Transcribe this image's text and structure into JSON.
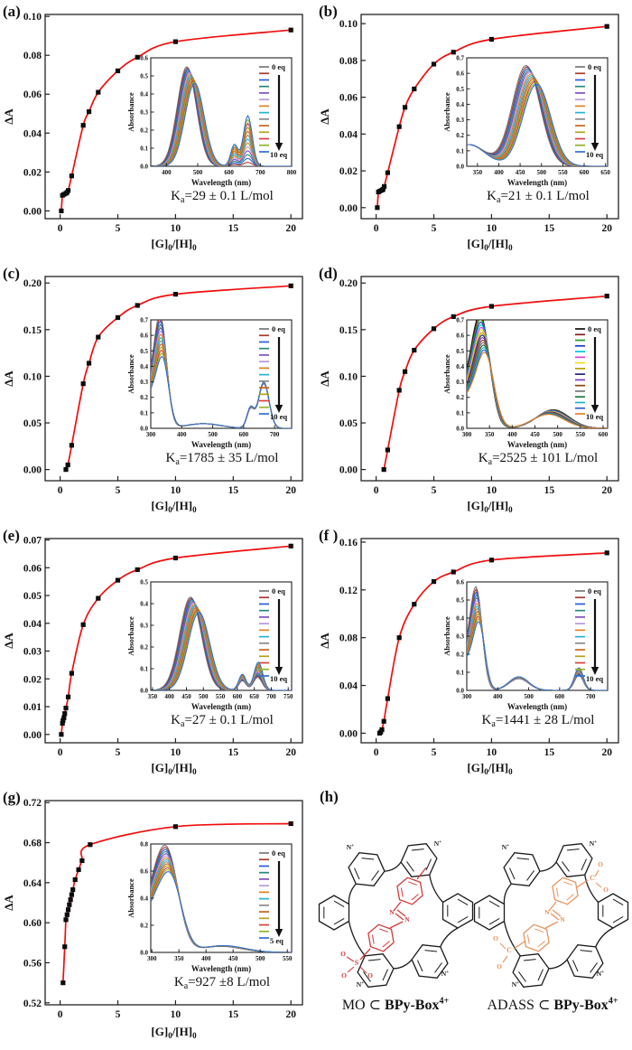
{
  "figure": {
    "background": "#ffffff",
    "frame_color": "#222222",
    "fit_color": "#f20d0d",
    "marker_color": "#0c0c0c"
  },
  "panel_h": {
    "letter": "(h)",
    "cage_color": "#1a1a1a",
    "left": {
      "pre": "MO ⊂ ",
      "bold": "BPy-Box",
      "sup": "4+",
      "guest_color": "#d43a3a"
    },
    "right": {
      "pre": "ADASS ⊂ ",
      "bold": "BPy-Box",
      "sup": "4+",
      "guest_color": "#e8935f"
    }
  },
  "chart_data": [
    {
      "id": "a",
      "letter": "(a)",
      "type": "scatter",
      "xlabel": {
        "p1": "[G]",
        "s1": "0",
        "p2": "/[H]",
        "s2": "0"
      },
      "ylabel": "ΔA",
      "xlim": [
        -1.3,
        21
      ],
      "ylim": [
        -0.004,
        0.101
      ],
      "xticks": [
        0,
        5,
        10,
        15,
        20
      ],
      "yticks": [
        0.0,
        0.02,
        0.04,
        0.06,
        0.08,
        0.1
      ],
      "ka": {
        "base": "K",
        "sub": "a",
        "rest": "=29 ± 0.1 L/mol"
      },
      "points": [
        [
          0.1,
          0.0
        ],
        [
          0.2,
          0.008
        ],
        [
          0.33,
          0.0085
        ],
        [
          0.5,
          0.009
        ],
        [
          0.6,
          0.0095
        ],
        [
          0.7,
          0.0105
        ],
        [
          1,
          0.018
        ],
        [
          2,
          0.044
        ],
        [
          2.5,
          0.051
        ],
        [
          3.3,
          0.061
        ],
        [
          5,
          0.072
        ],
        [
          6.7,
          0.079
        ],
        [
          10,
          0.087
        ],
        [
          20,
          0.093
        ]
      ],
      "inset": {
        "xlabel": "Wavelength (nm)",
        "ylabel": "Absorbance",
        "xlim": [
          350,
          800
        ],
        "ylim": [
          0,
          0.6
        ],
        "xticks": [
          400,
          500,
          600,
          700,
          800
        ],
        "yticks": [
          0.0,
          0.1,
          0.2,
          0.3,
          0.4,
          0.5,
          0.6
        ],
        "legend_top": "0 eq",
        "legend_bottom": "10 eq",
        "n_curves": 14,
        "peaks": [
          {
            "c": [
              465,
              490
            ],
            "w": 43,
            "a": [
              0.55,
              0.46
            ]
          },
          {
            "c": [
              660,
              660
            ],
            "w": 20,
            "a": [
              0.0,
              0.28
            ]
          },
          {
            "c": [
              617,
              617
            ],
            "w": 16,
            "a": [
              0.0,
              0.12
            ]
          }
        ]
      }
    },
    {
      "id": "b",
      "letter": "(b)",
      "type": "scatter",
      "xlabel": {
        "p1": "[G]",
        "s1": "0",
        "p2": "/[H]",
        "s2": "0"
      },
      "ylabel": "ΔA",
      "xlim": [
        -1.3,
        21
      ],
      "ylim": [
        -0.006,
        0.105
      ],
      "xticks": [
        0,
        5,
        10,
        15,
        20
      ],
      "yticks": [
        0.0,
        0.02,
        0.04,
        0.06,
        0.08,
        0.1
      ],
      "ka": {
        "base": "K",
        "sub": "a",
        "rest": "=21 ± 0.1 L/mol"
      },
      "points": [
        [
          0.1,
          0.0
        ],
        [
          0.2,
          0.0085
        ],
        [
          0.33,
          0.009
        ],
        [
          0.5,
          0.0095
        ],
        [
          0.6,
          0.01
        ],
        [
          0.7,
          0.0115
        ],
        [
          1,
          0.019
        ],
        [
          2,
          0.044
        ],
        [
          2.5,
          0.0545
        ],
        [
          3.3,
          0.0645
        ],
        [
          5,
          0.078
        ],
        [
          6.7,
          0.0845
        ],
        [
          10,
          0.0915
        ],
        [
          20,
          0.0985
        ]
      ],
      "inset": {
        "xlabel": "Wavelength (nm)",
        "ylabel": "Absorbance",
        "xlim": [
          325,
          655
        ],
        "ylim": [
          0,
          0.7
        ],
        "xticks": [
          350,
          400,
          450,
          500,
          550,
          600,
          650
        ],
        "yticks": [
          0.0,
          0.1,
          0.2,
          0.3,
          0.4,
          0.5,
          0.6,
          0.7
        ],
        "legend_top": "0 eq",
        "legend_bottom": "10 eq",
        "n_curves": 14,
        "peaks": [
          {
            "c": [
              464,
              489
            ],
            "w": 46,
            "a": [
              0.65,
              0.53
            ]
          },
          {
            "c": [
              330,
              330
            ],
            "w": 55,
            "a": [
              0.14,
              0.14
            ]
          }
        ]
      }
    },
    {
      "id": "c",
      "letter": "(c)",
      "type": "scatter",
      "xlabel": {
        "p1": "[G]",
        "s1": "0",
        "p2": "/[H]",
        "s2": "0"
      },
      "ylabel": "ΔA",
      "xlim": [
        -1.3,
        21
      ],
      "ylim": [
        -0.012,
        0.207
      ],
      "xticks": [
        0,
        5,
        10,
        15,
        20
      ],
      "yticks": [
        0.0,
        0.05,
        0.1,
        0.15,
        0.2
      ],
      "ka": {
        "base": "K",
        "sub": "a",
        "rest": "=1785 ± 35 L/mol"
      },
      "points": [
        [
          0.5,
          0.0
        ],
        [
          0.67,
          0.005
        ],
        [
          1,
          0.026
        ],
        [
          2,
          0.092
        ],
        [
          2.5,
          0.114
        ],
        [
          3.3,
          0.142
        ],
        [
          5,
          0.163
        ],
        [
          6.7,
          0.176
        ],
        [
          10,
          0.188
        ],
        [
          20,
          0.197
        ]
      ],
      "inset": {
        "xlabel": "Wavelength (nm)",
        "ylabel": "Absorbance",
        "xlim": [
          300,
          755
        ],
        "ylim": [
          0,
          0.7
        ],
        "xticks": [
          300,
          400,
          500,
          600,
          700
        ],
        "yticks": [
          0.0,
          0.1,
          0.2,
          0.3,
          0.4,
          0.5,
          0.6,
          0.7
        ],
        "legend_top": "0 eq",
        "legend_bottom": "10 eq",
        "n_curves": 14,
        "peaks": [
          {
            "c": [
              333,
              339
            ],
            "w": 27,
            "a": [
              0.65,
              0.42
            ]
          },
          {
            "c": [
              665,
              665
            ],
            "w": 24,
            "a": [
              0.29,
              0.3
            ]
          },
          {
            "c": [
              622,
              622
            ],
            "w": 16,
            "a": [
              0.12,
              0.13
            ]
          },
          {
            "c": [
              470,
              470
            ],
            "w": 80,
            "a": [
              0.03,
              0.03
            ]
          },
          {
            "c": [
              300,
              300
            ],
            "w": 30,
            "a": [
              0.25,
              0.2
            ]
          }
        ]
      }
    },
    {
      "id": "d",
      "letter": "(d)",
      "type": "scatter",
      "xlabel": {
        "p1": "[G]",
        "s1": "0",
        "p2": "/[H]",
        "s2": "0"
      },
      "ylabel": "ΔA",
      "xlim": [
        -1.3,
        21
      ],
      "ylim": [
        -0.012,
        0.207
      ],
      "xticks": [
        0,
        5,
        10,
        15,
        20
      ],
      "yticks": [
        0.0,
        0.05,
        0.1,
        0.15,
        0.2
      ],
      "ka": {
        "base": "K",
        "sub": "a",
        "rest": "=2525 ± 101 L/mol"
      },
      "points": [
        [
          0.67,
          0.0
        ],
        [
          1,
          0.021
        ],
        [
          2,
          0.085
        ],
        [
          2.5,
          0.105
        ],
        [
          3.3,
          0.128
        ],
        [
          5,
          0.151
        ],
        [
          6.7,
          0.164
        ],
        [
          10,
          0.175
        ],
        [
          20,
          0.186
        ]
      ],
      "inset": {
        "xlabel": "Wavelength (nm)",
        "ylabel": "Absorbance",
        "xlim": [
          300,
          610
        ],
        "ylim": [
          0,
          0.7
        ],
        "xticks": [
          300,
          350,
          400,
          450,
          500,
          550,
          600
        ],
        "yticks": [
          0.0,
          0.1,
          0.2,
          0.3,
          0.4,
          0.5,
          0.6,
          0.7
        ],
        "legend_top": "0 eq",
        "legend_bottom": "10 eq",
        "n_curves": 16,
        "palette": [
          "#111111",
          "#8b1a1a",
          "#22a022",
          "#2233cc",
          "#00c8d7",
          "#e040e0",
          "#e8e020",
          "#b8a000",
          "#232380",
          "#7d3fbf",
          "#8b4513",
          "#777777",
          "#1a7a3a",
          "#18b6c9",
          "#2a5bd7",
          "#e8821e"
        ],
        "peaks": [
          {
            "c": [
              332,
              341
            ],
            "w": 27,
            "a": [
              0.66,
              0.46
            ]
          },
          {
            "c": [
              490,
              480
            ],
            "w": 50,
            "a": [
              0.12,
              0.09
            ]
          },
          {
            "c": [
              300,
              300
            ],
            "w": 30,
            "a": [
              0.22,
              0.18
            ]
          }
        ]
      }
    },
    {
      "id": "e",
      "letter": "(e)",
      "type": "scatter",
      "xlabel": {
        "p1": "[G]",
        "s1": "0",
        "p2": "/[H]",
        "s2": "0"
      },
      "ylabel": "ΔA",
      "xlim": [
        -1.3,
        21
      ],
      "ylim": [
        -0.003,
        0.0705
      ],
      "xticks": [
        0,
        5,
        10,
        15,
        20
      ],
      "yticks": [
        0.0,
        0.01,
        0.02,
        0.03,
        0.04,
        0.05,
        0.06,
        0.07
      ],
      "ka": {
        "base": "K",
        "sub": "a",
        "rest": "=27 ± 0.1 L/mol"
      },
      "points": [
        [
          0.1,
          0.0
        ],
        [
          0.2,
          0.004
        ],
        [
          0.25,
          0.005
        ],
        [
          0.33,
          0.006
        ],
        [
          0.4,
          0.0075
        ],
        [
          0.5,
          0.0095
        ],
        [
          0.7,
          0.0135
        ],
        [
          1,
          0.022
        ],
        [
          2,
          0.0395
        ],
        [
          3.3,
          0.049
        ],
        [
          5,
          0.0555
        ],
        [
          6.7,
          0.0593
        ],
        [
          10,
          0.0635
        ],
        [
          20,
          0.0678
        ]
      ],
      "inset": {
        "xlabel": "Wavelength (nm)",
        "ylabel": "Absorbance",
        "xlim": [
          345,
          760
        ],
        "ylim": [
          0,
          0.5
        ],
        "xticks": [
          350,
          400,
          450,
          500,
          550,
          600,
          650,
          700,
          750
        ],
        "yticks": [
          0.0,
          0.1,
          0.2,
          0.3,
          0.4,
          0.5
        ],
        "legend_top": "0 eq",
        "legend_bottom": "10 eq",
        "n_curves": 14,
        "peaks": [
          {
            "c": [
              462,
              487
            ],
            "w": 45,
            "a": [
              0.43,
              0.36
            ]
          },
          {
            "c": [
              660,
              662
            ],
            "w": 18,
            "a": [
              0.06,
              0.13
            ]
          },
          {
            "c": [
              615,
              615
            ],
            "w": 15,
            "a": [
              0.045,
              0.075
            ]
          }
        ]
      }
    },
    {
      "id": "f",
      "letter": "(f )",
      "type": "scatter",
      "xlabel": {
        "p1": "[G]",
        "s1": "0",
        "p2": "/[H]",
        "s2": "0"
      },
      "ylabel": "ΔA",
      "xlim": [
        -1.3,
        21
      ],
      "ylim": [
        -0.008,
        0.163
      ],
      "xticks": [
        0,
        5,
        10,
        15,
        20
      ],
      "yticks": [
        0.0,
        0.04,
        0.08,
        0.12,
        0.16
      ],
      "ka": {
        "base": "K",
        "sub": "a",
        "rest": "=1441 ± 28 L/mol"
      },
      "points": [
        [
          0.3,
          0.0
        ],
        [
          0.4,
          0.001
        ],
        [
          0.5,
          0.003
        ],
        [
          0.67,
          0.01
        ],
        [
          1,
          0.029
        ],
        [
          2,
          0.08
        ],
        [
          3.3,
          0.108
        ],
        [
          5,
          0.127
        ],
        [
          6.7,
          0.135
        ],
        [
          10,
          0.145
        ],
        [
          20,
          0.151
        ]
      ],
      "inset": {
        "xlabel": "Wavelength (nm)",
        "ylabel": "Absorbance",
        "xlim": [
          300,
          755
        ],
        "ylim": [
          0,
          0.6
        ],
        "xticks": [
          300,
          400,
          500,
          600,
          700
        ],
        "yticks": [
          0.0,
          0.1,
          0.2,
          0.3,
          0.4,
          0.5,
          0.6
        ],
        "legend_top": "0 eq",
        "legend_bottom": "10 eq",
        "n_curves": 14,
        "peaks": [
          {
            "c": [
              332,
              340
            ],
            "w": 26,
            "a": [
              0.52,
              0.36
            ]
          },
          {
            "c": [
              468,
              468
            ],
            "w": 45,
            "a": [
              0.065,
              0.075
            ]
          },
          {
            "c": [
              662,
              662
            ],
            "w": 20,
            "a": [
              0.085,
              0.125
            ]
          },
          {
            "c": [
              300,
              300
            ],
            "w": 28,
            "a": [
              0.18,
              0.15
            ]
          }
        ]
      }
    },
    {
      "id": "g",
      "letter": "(g)",
      "type": "scatter",
      "xlabel": {
        "p1": "[G]",
        "s1": "0",
        "p2": "/[H]",
        "s2": "0"
      },
      "ylabel": "ΔA",
      "xlim": [
        -1.3,
        21
      ],
      "ylim": [
        0.518,
        0.722
      ],
      "xticks": [
        0,
        5,
        10,
        15,
        20
      ],
      "yticks": [
        0.52,
        0.56,
        0.6,
        0.64,
        0.68,
        0.72
      ],
      "ka": {
        "base": "K",
        "sub": "a",
        "rest": "=927 ±8 L/mol"
      },
      "points": [
        [
          0.25,
          0.54
        ],
        [
          0.4,
          0.576
        ],
        [
          0.5,
          0.603
        ],
        [
          0.6,
          0.608
        ],
        [
          0.7,
          0.613
        ],
        [
          0.8,
          0.618
        ],
        [
          0.9,
          0.623
        ],
        [
          1.0,
          0.628
        ],
        [
          1.1,
          0.633
        ],
        [
          1.3,
          0.643
        ],
        [
          1.6,
          0.653
        ],
        [
          1.9,
          0.662
        ],
        [
          2.6,
          0.678
        ],
        [
          10,
          0.696
        ],
        [
          20,
          0.699
        ]
      ],
      "inset": {
        "xlabel": "Wavelength (nm)",
        "ylabel": "Absorbance",
        "xlim": [
          298,
          558
        ],
        "ylim": [
          0,
          0.8
        ],
        "xticks": [
          300,
          350,
          400,
          450,
          500,
          550
        ],
        "yticks": [
          0.0,
          0.2,
          0.4,
          0.6,
          0.8
        ],
        "legend_top": "0 eq",
        "legend_bottom": "5 eq",
        "n_curves": 14,
        "peaks": [
          {
            "c": [
              329,
              334
            ],
            "w": 29,
            "a": [
              0.7,
              0.55
            ]
          },
          {
            "c": [
              427,
              432
            ],
            "w": 55,
            "a": [
              0.045,
              0.05
            ]
          },
          {
            "c": [
              298,
              298
            ],
            "w": 26,
            "a": [
              0.3,
              0.25
            ]
          }
        ]
      }
    }
  ]
}
